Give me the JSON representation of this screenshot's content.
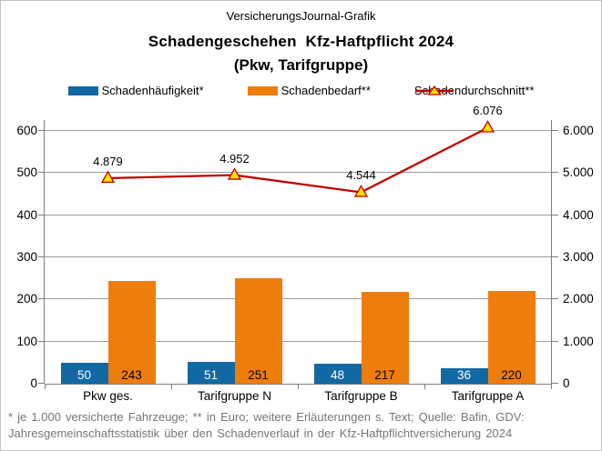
{
  "header": {
    "brand": "VersicherungsJournal-Grafik",
    "title_line1": "Schadengeschehen  Kfz-Haftpflicht 2024",
    "title_line2": "(Pkw, Tarifgruppe)"
  },
  "legend": [
    {
      "label": "Schadenhäufigkeit*",
      "swatch": "bar",
      "color": "#1268A3"
    },
    {
      "label": "Schadenbedarf**",
      "swatch": "bar",
      "color": "#EF7D0C"
    },
    {
      "label": "Schadendurchschnitt**",
      "swatch": "line-triangle",
      "color": "#C00000",
      "marker_fill": "#FFE100"
    }
  ],
  "chart_data": {
    "type": "bar+line",
    "categories": [
      "Pkw ges.",
      "Tarifgruppe N",
      "Tarifgruppe B",
      "Tarifgruppe A"
    ],
    "series": [
      {
        "name": "Schadenhäufigkeit*",
        "type": "bar",
        "axis": "left",
        "color": "#1268A3",
        "label_color": "#ffffff",
        "values": [
          50,
          51,
          48,
          36
        ]
      },
      {
        "name": "Schadenbedarf**",
        "type": "bar",
        "axis": "left",
        "color": "#EF7D0C",
        "label_color": "#000000",
        "values": [
          243,
          251,
          217,
          220
        ]
      },
      {
        "name": "Schadendurchschnitt**",
        "type": "line",
        "axis": "right",
        "color": "#C00000",
        "marker": "triangle",
        "marker_fill": "#FFE100",
        "values": [
          4879,
          4952,
          4544,
          6076
        ],
        "labels": [
          "4.879",
          "4.952",
          "4.544",
          "6.076"
        ]
      }
    ],
    "left_axis": {
      "min": 0,
      "max": 600,
      "ticks": [
        "0",
        "100",
        "200",
        "300",
        "400",
        "500",
        "600"
      ]
    },
    "right_axis": {
      "min": 0,
      "max": 6000,
      "ticks": [
        "0",
        "1.000",
        "2.000",
        "3.000",
        "4.000",
        "5.000",
        "6.000"
      ]
    },
    "grid": "horizontal",
    "legend_position": "top"
  },
  "footer": {
    "line1": "* je 1.000 versicherte Fahrzeuge; ** in Euro; weitere Erläuterungen s. Text; Quelle: Bafin, GDV:",
    "line2": "Jahresgemeinschaftsstatistik über den Schadenverlauf in der Kfz-Haftpflichtversicherung 2024"
  }
}
